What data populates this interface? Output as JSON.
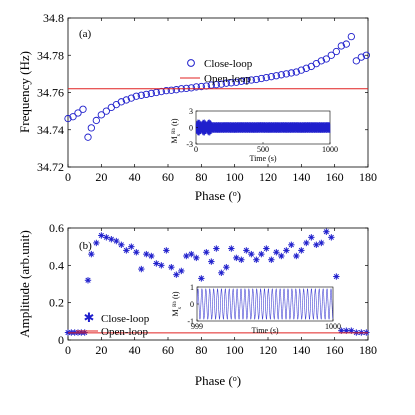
{
  "chart_data": [
    {
      "panel_label": "(a)",
      "type": "scatter",
      "xlabel": "Phase (",
      "xlabel_sup": "o",
      "xlabel_end": ")",
      "ylabel": "Frequency (Hz)",
      "xlim": [
        0,
        180
      ],
      "ylim": [
        34.72,
        34.8
      ],
      "x_ticks": [
        "0",
        "20",
        "40",
        "60",
        "80",
        "100",
        "120",
        "140",
        "160",
        "180"
      ],
      "y_ticks": [
        "34.72",
        "34.74",
        "34.76",
        "34.78",
        "34.8"
      ],
      "legend": {
        "location": "top-center",
        "entries": [
          "Close-loop",
          "Open-loop"
        ]
      },
      "series": [
        {
          "name": "Close-loop",
          "marker": "open-circle",
          "color": "#1f1fcc",
          "x": [
            0,
            3,
            6,
            9,
            12,
            14,
            17,
            20,
            23,
            26,
            29,
            32,
            35,
            38,
            41,
            44,
            47,
            50,
            53,
            56,
            59,
            62,
            65,
            68,
            71,
            74,
            77,
            80,
            83,
            86,
            89,
            92,
            95,
            98,
            101,
            104,
            107,
            110,
            113,
            116,
            119,
            122,
            125,
            128,
            131,
            134,
            137,
            140,
            143,
            146,
            149,
            152,
            155,
            158,
            161,
            164,
            167,
            170,
            173,
            176,
            179
          ],
          "y": [
            34.746,
            34.747,
            34.749,
            34.751,
            34.736,
            34.741,
            34.745,
            34.748,
            34.75,
            34.752,
            34.7535,
            34.755,
            34.756,
            34.757,
            34.758,
            34.7585,
            34.759,
            34.7595,
            34.76,
            34.7605,
            34.761,
            34.7612,
            34.7615,
            34.762,
            34.7622,
            34.7625,
            34.763,
            34.7632,
            34.7635,
            34.764,
            34.7642,
            34.7645,
            34.765,
            34.7652,
            34.7655,
            34.766,
            34.7663,
            34.7667,
            34.767,
            34.7675,
            34.768,
            34.7685,
            34.769,
            34.7695,
            34.77,
            34.7705,
            34.771,
            34.772,
            34.773,
            34.774,
            34.7755,
            34.777,
            34.778,
            34.78,
            34.782,
            34.785,
            34.786,
            34.79,
            34.777,
            34.779,
            34.78
          ]
        },
        {
          "name": "Open-loop",
          "type": "hline",
          "color": "#e02020",
          "y": 34.762
        }
      ],
      "inset": {
        "xlabel": "Time (s)",
        "ylabel": "M",
        "ylabel_sub": "x",
        "ylabel_sup": "Rb",
        "ylabel_end": " (t)",
        "xlim": [
          0,
          1000
        ],
        "ylim": [
          -3,
          3
        ],
        "x_ticks": [
          "0",
          "500",
          "1000"
        ],
        "y_ticks": [
          "3",
          "0",
          "-3"
        ],
        "description": "dense oscillation, amplitude ~1.0 with brief spikes to ~1.5 in first 100 s",
        "steady_amplitude": 1.0,
        "initial_spike_amplitude": 1.5
      }
    },
    {
      "panel_label": "(b)",
      "type": "scatter",
      "xlabel": "Phase (",
      "xlabel_sup": "o",
      "xlabel_end": ")",
      "ylabel": "Amplitude (arb.unit)",
      "xlim": [
        0,
        180
      ],
      "ylim": [
        0,
        0.6
      ],
      "x_ticks": [
        "0",
        "20",
        "40",
        "60",
        "80",
        "100",
        "120",
        "140",
        "160",
        "180"
      ],
      "y_ticks": [
        "0",
        "0.2",
        "0.4",
        "0.6"
      ],
      "legend": {
        "location": "bottom-left",
        "entries": [
          "Close-loop",
          "Open-loop"
        ]
      },
      "series": [
        {
          "name": "Close-loop",
          "marker": "asterisk",
          "color": "#1f1fcc",
          "x": [
            0,
            2,
            4,
            6,
            8,
            10,
            12,
            14,
            17,
            20,
            23,
            26,
            29,
            32,
            35,
            38,
            41,
            44,
            47,
            50,
            53,
            56,
            59,
            62,
            65,
            68,
            71,
            74,
            77,
            80,
            83,
            86,
            89,
            92,
            95,
            98,
            101,
            104,
            107,
            110,
            113,
            116,
            119,
            122,
            125,
            128,
            131,
            134,
            137,
            140,
            143,
            146,
            149,
            152,
            155,
            158,
            161,
            164,
            167,
            170,
            173,
            176,
            179
          ],
          "y": [
            0.04,
            0.04,
            0.04,
            0.04,
            0.04,
            0.04,
            0.32,
            0.46,
            0.52,
            0.56,
            0.55,
            0.54,
            0.53,
            0.51,
            0.48,
            0.5,
            0.47,
            0.38,
            0.46,
            0.45,
            0.41,
            0.4,
            0.48,
            0.39,
            0.35,
            0.37,
            0.45,
            0.46,
            0.44,
            0.33,
            0.47,
            0.42,
            0.49,
            0.36,
            0.39,
            0.49,
            0.44,
            0.43,
            0.48,
            0.46,
            0.43,
            0.46,
            0.49,
            0.43,
            0.47,
            0.45,
            0.48,
            0.51,
            0.45,
            0.48,
            0.52,
            0.55,
            0.51,
            0.52,
            0.58,
            0.55,
            0.34,
            0.05,
            0.05,
            0.05,
            0.04,
            0.04,
            0.04
          ]
        },
        {
          "name": "Open-loop",
          "type": "hline",
          "color": "#e02020",
          "y": 0.038
        }
      ],
      "inset": {
        "xlabel": "Time (s)",
        "ylabel": "M",
        "ylabel_sub": "x",
        "ylabel_sup": "Rb",
        "ylabel_end": " (t)",
        "xlim": [
          999,
          1000
        ],
        "ylim": [
          -1,
          1
        ],
        "x_ticks": [
          "999",
          "1000"
        ],
        "y_ticks": [
          "1",
          "0",
          "-1"
        ],
        "description": "sinusoid, about 34.76 cycles per second",
        "cycles": 34.76,
        "amplitude": 0.9
      }
    }
  ]
}
